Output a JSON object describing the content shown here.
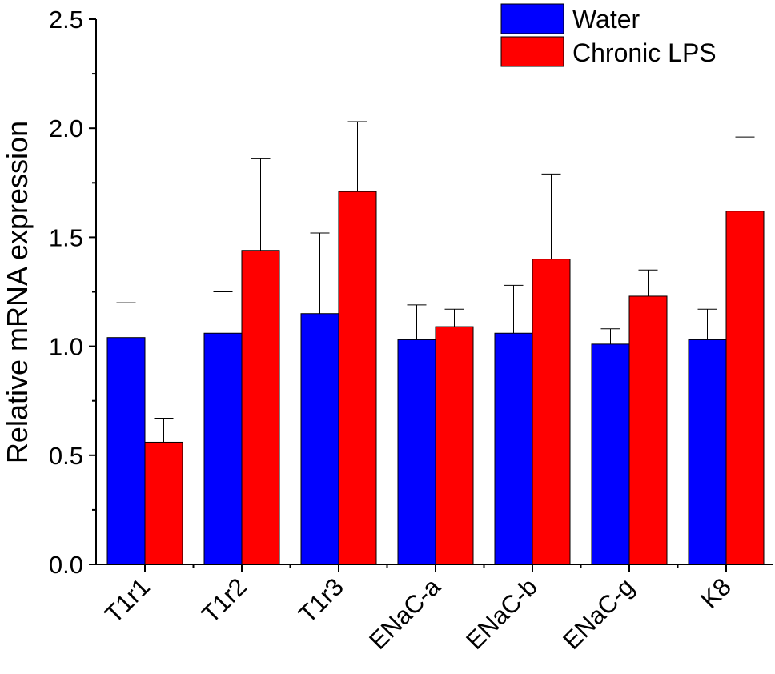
{
  "chart_data": {
    "type": "bar",
    "title": "",
    "xlabel": "",
    "ylabel": "Relative mRNA expression",
    "ylim": [
      0,
      2.5
    ],
    "yticks": [
      "0.0",
      "0.5",
      "1.0",
      "1.5",
      "2.0",
      "2.5"
    ],
    "grid": false,
    "legend_position": "top-right",
    "categories": [
      "T1r1",
      "T1r2",
      "T1r3",
      "ENaC-a",
      "ENaC-b",
      "ENaC-g",
      "K8"
    ],
    "series": [
      {
        "name": "Water",
        "color": "#0000FF",
        "values": [
          1.04,
          1.06,
          1.15,
          1.03,
          1.06,
          1.01,
          1.03
        ],
        "error_upper": [
          1.2,
          1.25,
          1.52,
          1.19,
          1.28,
          1.08,
          1.17
        ]
      },
      {
        "name": "Chronic LPS",
        "color": "#FF0000",
        "values": [
          0.56,
          1.44,
          1.71,
          1.09,
          1.4,
          1.23,
          1.62
        ],
        "error_upper": [
          0.67,
          1.86,
          2.03,
          1.17,
          1.79,
          1.35,
          1.96
        ]
      }
    ]
  }
}
